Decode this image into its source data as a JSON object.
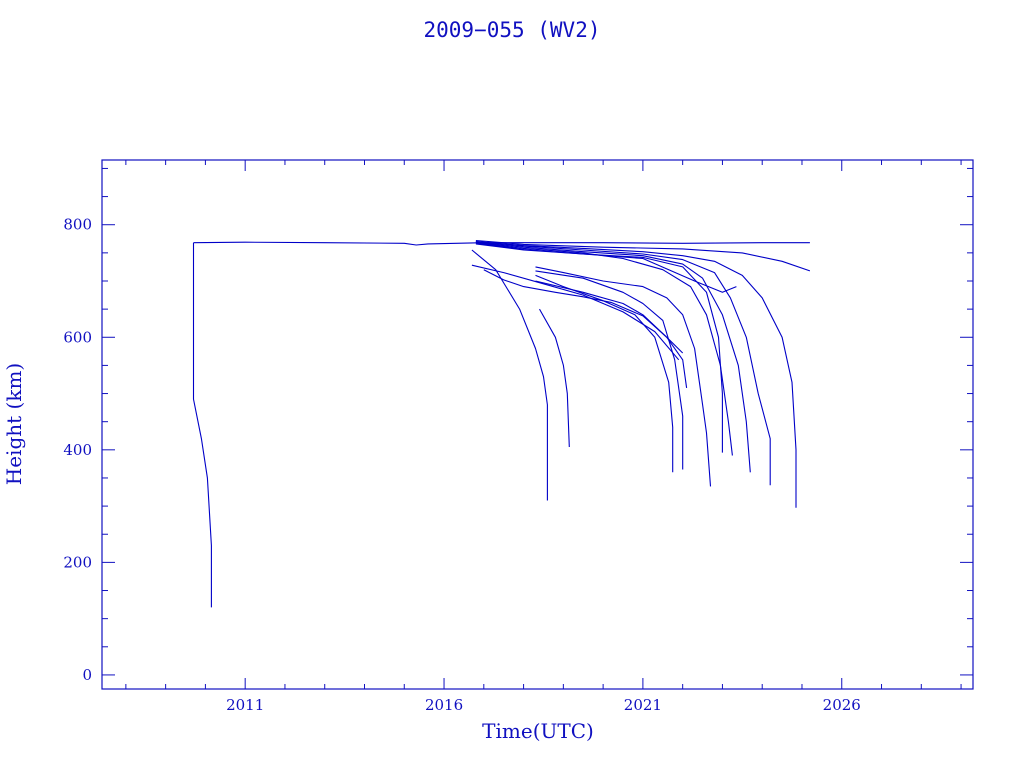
{
  "chart_data": {
    "type": "line",
    "title": "2009−055 (WV2)",
    "xlabel": "Time(UTC)",
    "ylabel": "Height (km)",
    "xlim": [
      2007.4,
      2029.3
    ],
    "ylim": [
      -25,
      915
    ],
    "xticks": [
      2011,
      2016,
      2021,
      2026
    ],
    "xtick_labels": [
      "2011",
      "2016",
      "2021",
      "2026"
    ],
    "yticks": [
      0,
      200,
      400,
      600,
      800
    ],
    "ytick_labels": [
      "0",
      "200",
      "400",
      "600",
      "800"
    ],
    "grid": false,
    "colors": {
      "axes": "#1010c0",
      "series": "#0000c8"
    },
    "series": [
      {
        "points": [
          [
            2009.7,
            768
          ],
          [
            2011.0,
            769
          ],
          [
            2013.0,
            768
          ],
          [
            2015.0,
            767
          ],
          [
            2015.3,
            764
          ],
          [
            2015.6,
            766
          ],
          [
            2017.0,
            768
          ],
          [
            2020.0,
            768
          ],
          [
            2022.0,
            767
          ],
          [
            2024.0,
            768
          ],
          [
            2025.2,
            768
          ]
        ]
      },
      {
        "points": [
          [
            2009.7,
            768
          ],
          [
            2009.7,
            490
          ],
          [
            2009.9,
            420
          ],
          [
            2010.05,
            350
          ],
          [
            2010.15,
            230
          ],
          [
            2010.15,
            120
          ]
        ]
      },
      {
        "points": [
          [
            2016.8,
            772
          ],
          [
            2018.0,
            765
          ],
          [
            2020.0,
            760
          ],
          [
            2022.0,
            757
          ],
          [
            2023.5,
            750
          ],
          [
            2024.5,
            735
          ],
          [
            2025.2,
            718
          ]
        ]
      },
      {
        "points": [
          [
            2016.8,
            770
          ],
          [
            2018.0,
            763
          ],
          [
            2019.5,
            758
          ],
          [
            2021.0,
            752
          ],
          [
            2022.0,
            745
          ],
          [
            2022.8,
            735
          ],
          [
            2023.5,
            710
          ],
          [
            2024.0,
            670
          ],
          [
            2024.5,
            600
          ],
          [
            2024.75,
            520
          ],
          [
            2024.85,
            400
          ],
          [
            2024.85,
            297
          ]
        ]
      },
      {
        "points": [
          [
            2016.8,
            770
          ],
          [
            2018.0,
            762
          ],
          [
            2019.5,
            755
          ],
          [
            2021.0,
            748
          ],
          [
            2022.0,
            738
          ],
          [
            2022.8,
            715
          ],
          [
            2023.2,
            670
          ],
          [
            2023.6,
            600
          ],
          [
            2023.9,
            500
          ],
          [
            2024.2,
            420
          ],
          [
            2024.2,
            337
          ]
        ]
      },
      {
        "points": [
          [
            2016.8,
            769
          ],
          [
            2018.0,
            760
          ],
          [
            2019.5,
            752
          ],
          [
            2021.0,
            745
          ],
          [
            2022.0,
            730
          ],
          [
            2022.5,
            705
          ],
          [
            2023.0,
            640
          ],
          [
            2023.4,
            550
          ],
          [
            2023.6,
            450
          ],
          [
            2023.7,
            360
          ]
        ]
      },
      {
        "points": [
          [
            2016.8,
            768
          ],
          [
            2018.0,
            758
          ],
          [
            2019.5,
            750
          ],
          [
            2020.5,
            740
          ],
          [
            2021.5,
            720
          ],
          [
            2022.2,
            690
          ],
          [
            2022.6,
            640
          ],
          [
            2022.95,
            550
          ],
          [
            2023.15,
            450
          ],
          [
            2023.25,
            390
          ]
        ]
      },
      {
        "points": [
          [
            2016.8,
            767
          ],
          [
            2018.0,
            756
          ],
          [
            2019.5,
            748
          ],
          [
            2021.0,
            742
          ],
          [
            2022.0,
            725
          ],
          [
            2022.6,
            680
          ],
          [
            2022.9,
            600
          ],
          [
            2023.0,
            500
          ],
          [
            2023.0,
            395
          ]
        ]
      },
      {
        "points": [
          [
            2016.8,
            766
          ],
          [
            2018.0,
            755
          ],
          [
            2019.5,
            748
          ],
          [
            2021.0,
            740
          ],
          [
            2022.3,
            700
          ],
          [
            2023.0,
            680
          ],
          [
            2023.35,
            690
          ]
        ]
      },
      {
        "points": [
          [
            2018.3,
            725
          ],
          [
            2019.0,
            715
          ],
          [
            2020.0,
            700
          ],
          [
            2021.0,
            690
          ],
          [
            2021.6,
            670
          ],
          [
            2022.0,
            640
          ],
          [
            2022.3,
            580
          ],
          [
            2022.5,
            480
          ],
          [
            2022.6,
            430
          ],
          [
            2022.7,
            335
          ]
        ]
      },
      {
        "points": [
          [
            2018.3,
            718
          ],
          [
            2019.5,
            705
          ],
          [
            2020.5,
            680
          ],
          [
            2021.0,
            660
          ],
          [
            2021.5,
            630
          ],
          [
            2021.8,
            560
          ],
          [
            2022.0,
            460
          ],
          [
            2022.0,
            365
          ]
        ]
      },
      {
        "points": [
          [
            2018.3,
            710
          ],
          [
            2019.0,
            690
          ],
          [
            2020.0,
            665
          ],
          [
            2020.8,
            640
          ],
          [
            2021.3,
            600
          ],
          [
            2021.65,
            520
          ],
          [
            2021.75,
            440
          ],
          [
            2021.75,
            360
          ]
        ]
      },
      {
        "points": [
          [
            2016.7,
            728
          ],
          [
            2017.5,
            715
          ],
          [
            2018.5,
            695
          ],
          [
            2019.5,
            675
          ],
          [
            2020.5,
            645
          ],
          [
            2021.3,
            610
          ],
          [
            2021.9,
            560
          ]
        ]
      },
      {
        "points": [
          [
            2018.3,
            700
          ],
          [
            2019.5,
            680
          ],
          [
            2020.5,
            660
          ],
          [
            2021.0,
            640
          ],
          [
            2021.6,
            600
          ],
          [
            2022.0,
            560
          ],
          [
            2022.1,
            510
          ]
        ]
      },
      {
        "points": [
          [
            2016.7,
            755
          ],
          [
            2017.3,
            720
          ],
          [
            2017.9,
            650
          ],
          [
            2018.3,
            580
          ],
          [
            2018.5,
            530
          ],
          [
            2018.6,
            480
          ],
          [
            2018.6,
            310
          ]
        ]
      },
      {
        "points": [
          [
            2018.4,
            650
          ],
          [
            2018.8,
            600
          ],
          [
            2019.0,
            550
          ],
          [
            2019.1,
            500
          ],
          [
            2019.15,
            405
          ]
        ]
      },
      {
        "points": [
          [
            2017.0,
            720
          ],
          [
            2017.5,
            702
          ],
          [
            2018.0,
            690
          ],
          [
            2018.8,
            680
          ],
          [
            2019.5,
            672
          ],
          [
            2020.2,
            662
          ],
          [
            2021.0,
            638
          ],
          [
            2021.6,
            600
          ],
          [
            2022.0,
            572
          ]
        ]
      }
    ]
  }
}
